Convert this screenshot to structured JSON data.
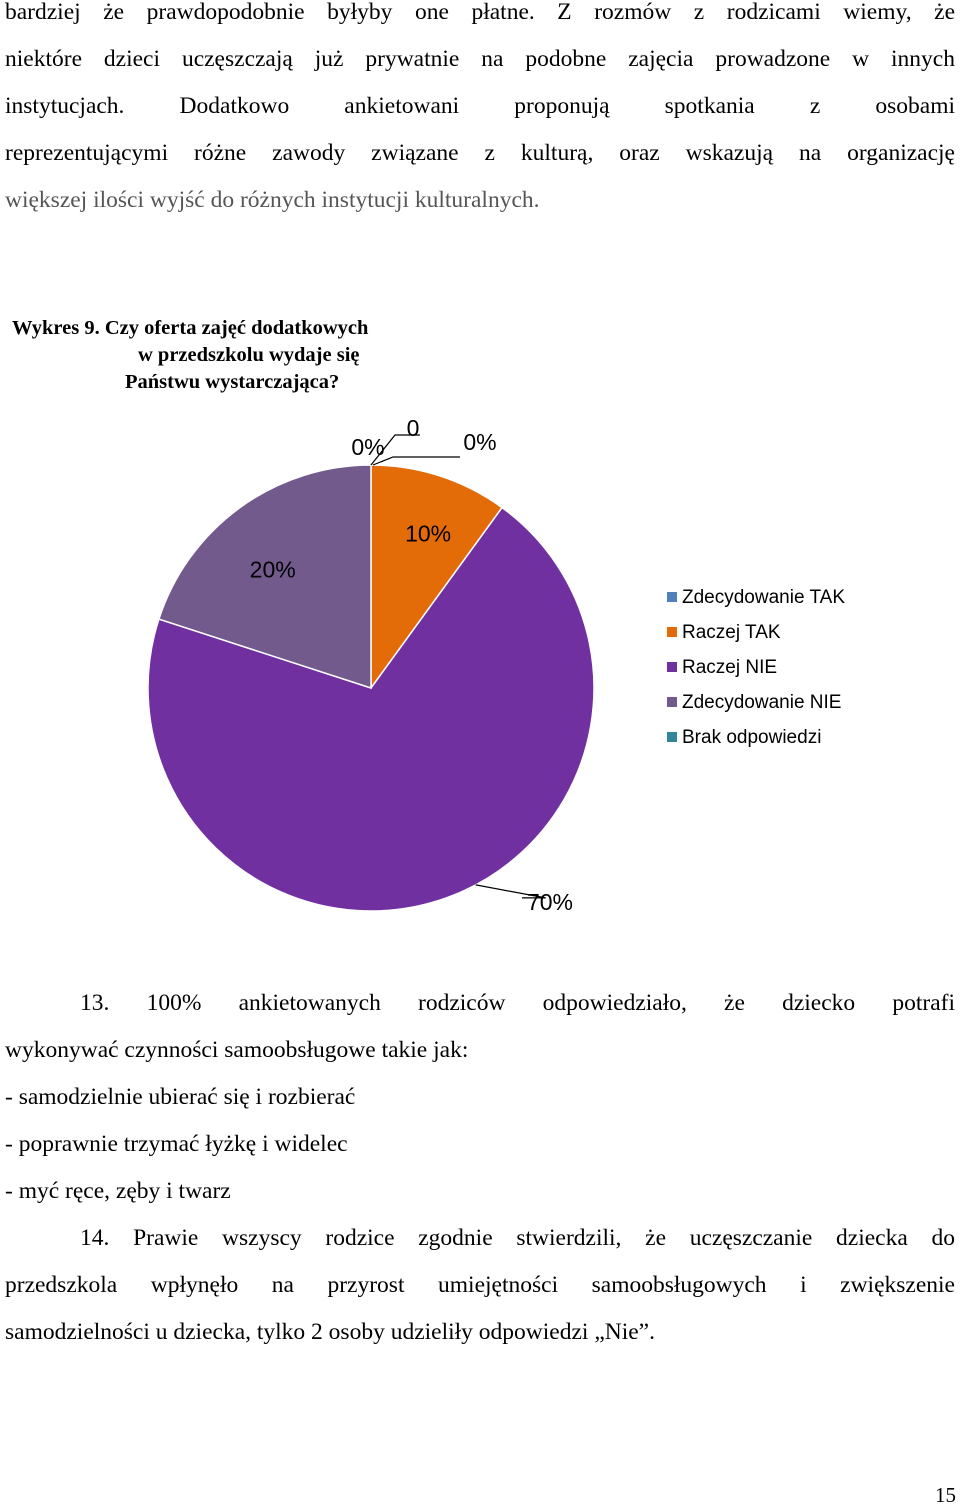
{
  "paragraph1": {
    "line1": "bardziej że prawdopodobnie byłyby one płatne. Z rozmów z rodzicami wiemy, że",
    "line2": "niektóre dzieci uczęszczają już prywatnie na podobne zajęcia prowadzone w innych",
    "line3": "instytucjach. Dodatkowo ankietowani proponują spotkania z osobami",
    "line4": "reprezentującymi różne zawody związane z kulturą, oraz wskazują na organizację",
    "line5": "większej ilości wyjść do różnych instytucji kulturalnych."
  },
  "chart_title": {
    "line1": "Wykres 9. Czy oferta zajęć dodatkowych",
    "line2": "w przedszkolu wydaje się",
    "line3": "Państwu wystarczająca?"
  },
  "chart_data": {
    "type": "pie",
    "categories": [
      "Zdecydowanie TAK",
      "Raczej TAK",
      "Raczej NIE",
      "Zdecydowanie NIE",
      "Brak odpowiedzi"
    ],
    "values": [
      0,
      10,
      70,
      20,
      0
    ],
    "data_labels": [
      "0%",
      "10%",
      "70%",
      "20%",
      "0%"
    ],
    "extra_label": "0",
    "colors": [
      "#4f81bd",
      "#e36c09",
      "#7030a0",
      "#725a8c",
      "#31859c"
    ],
    "legend_position": "right"
  },
  "paragraph2": {
    "line1": "13. 100% ankietowanych rodziców odpowiedziało, że dziecko potrafi",
    "line2": "wykonywać czynności samoobsługowe takie jak:",
    "line3": "- samodzielnie ubierać się i rozbierać",
    "line4": "- poprawnie trzymać łyżkę i widelec",
    "line5": "- myć ręce, zęby i twarz",
    "line6": "14. Prawie wszyscy rodzice zgodnie stwierdzili, że uczęszczanie dziecka do",
    "line7": "przedszkola wpłynęło na przyrost umiejętności samoobsługowych i zwiększenie",
    "line8": "samodzielności u dziecka, tylko 2 osoby udzieliły odpowiedzi „Nie”."
  },
  "page_number": "15"
}
